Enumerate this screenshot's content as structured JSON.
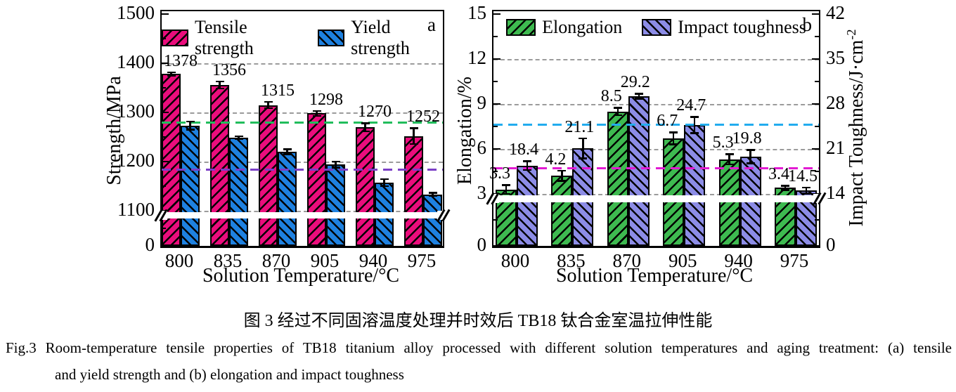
{
  "figure_caption": {
    "zh": "图 3  经过不同固溶温度处理并时效后 TB18 钛合金室温拉伸性能",
    "en_line1": "Fig.3   Room-temperature tensile properties of TB18 titanium alloy processed with different solution temperatures and aging treatment: (a) tensile",
    "en_line2": "and yield strength and (b) elongation and impact toughness"
  },
  "chart_data": [
    {
      "id": "a",
      "type": "bar",
      "panel_label": "a",
      "xlabel": "Solution Temperature/°C",
      "ylabel": "Strength/MPa",
      "categories": [
        "800",
        "835",
        "870",
        "905",
        "940",
        "975"
      ],
      "y_axis": {
        "ticks": [
          1500,
          1400,
          1300,
          1200,
          1100,
          0
        ],
        "minor_ticks": [
          1450,
          1350,
          1250,
          1150,
          550
        ],
        "axis_break": "between 0 and 1100"
      },
      "gridlines": [
        1400,
        1300,
        1200,
        1100
      ],
      "grid_style": "dashed",
      "legend_position": "top-center",
      "series": [
        {
          "name": "Tensile strength",
          "color": "#EA0D7C",
          "hatch": "fwd",
          "values": [
            1378,
            1356,
            1315,
            1298,
            1270,
            1252
          ],
          "errors": [
            5,
            9,
            8,
            7,
            10,
            18
          ],
          "labels": [
            "1378",
            "1356",
            "1315",
            "1298",
            "1270",
            "1252"
          ]
        },
        {
          "name": "Yield strength",
          "color": "#1E81E0",
          "hatch": "bwd",
          "values": [
            1273,
            1249,
            1220,
            1194,
            1157,
            1133
          ],
          "errors": [
            10,
            4,
            7,
            8,
            9,
            5
          ]
        }
      ],
      "reference_lines": [
        {
          "value": 1280,
          "color": "#21BD5C"
        },
        {
          "value": 1185,
          "color": "#7B3FC6"
        }
      ]
    },
    {
      "id": "b",
      "type": "bar",
      "panel_label": "b",
      "xlabel": "Solution Temperature/°C",
      "ylabel": "Elongation/%",
      "ylabel_right_base": "Impact Toughness/J·cm",
      "ylabel_right_sup": "-2",
      "categories": [
        "800",
        "835",
        "870",
        "905",
        "940",
        "975"
      ],
      "y_axis": {
        "ticks": [
          15,
          12,
          9,
          6,
          3,
          0
        ],
        "minor_ticks": [
          13.5,
          10.5,
          7.5,
          4.5,
          1.5
        ],
        "axis_break": "between 0 and 3"
      },
      "y_axis_right": {
        "ticks": [
          42,
          35,
          28,
          21,
          14,
          0
        ],
        "minor_ticks": [
          38.5,
          31.5,
          24.5,
          17.5,
          7
        ],
        "axis_break": "between 0 and 14"
      },
      "gridlines": [
        12,
        9,
        6,
        3
      ],
      "grid_style": "dashed",
      "legend_position": "top-center",
      "series": [
        {
          "name": "Elongation",
          "color": "#3EBA50",
          "hatch": "fwd",
          "values": [
            3.3,
            4.2,
            8.5,
            6.7,
            5.3,
            3.4
          ],
          "errors": [
            0.35,
            0.4,
            0.3,
            0.45,
            0.4,
            0.2
          ],
          "labels": [
            "3.3",
            "4.2",
            "8.5",
            "6.7",
            "5.3",
            "3.4"
          ]
        },
        {
          "name": "Impact toughness",
          "color": "#8C8CE6",
          "hatch": "bwd",
          "axis": "right",
          "values": [
            18.4,
            21.1,
            29.2,
            24.7,
            19.8,
            14.5
          ],
          "errors": [
            0.8,
            1.7,
            0.5,
            1.4,
            1.2,
            0.6
          ],
          "labels": [
            "18.4",
            "21.1",
            "29.2",
            "24.7",
            "19.8",
            "14.5"
          ]
        }
      ],
      "reference_lines": [
        {
          "value": 7.65,
          "color": "#22ACEE"
        },
        {
          "value": 4.75,
          "color": "#E21BD2"
        }
      ]
    }
  ]
}
